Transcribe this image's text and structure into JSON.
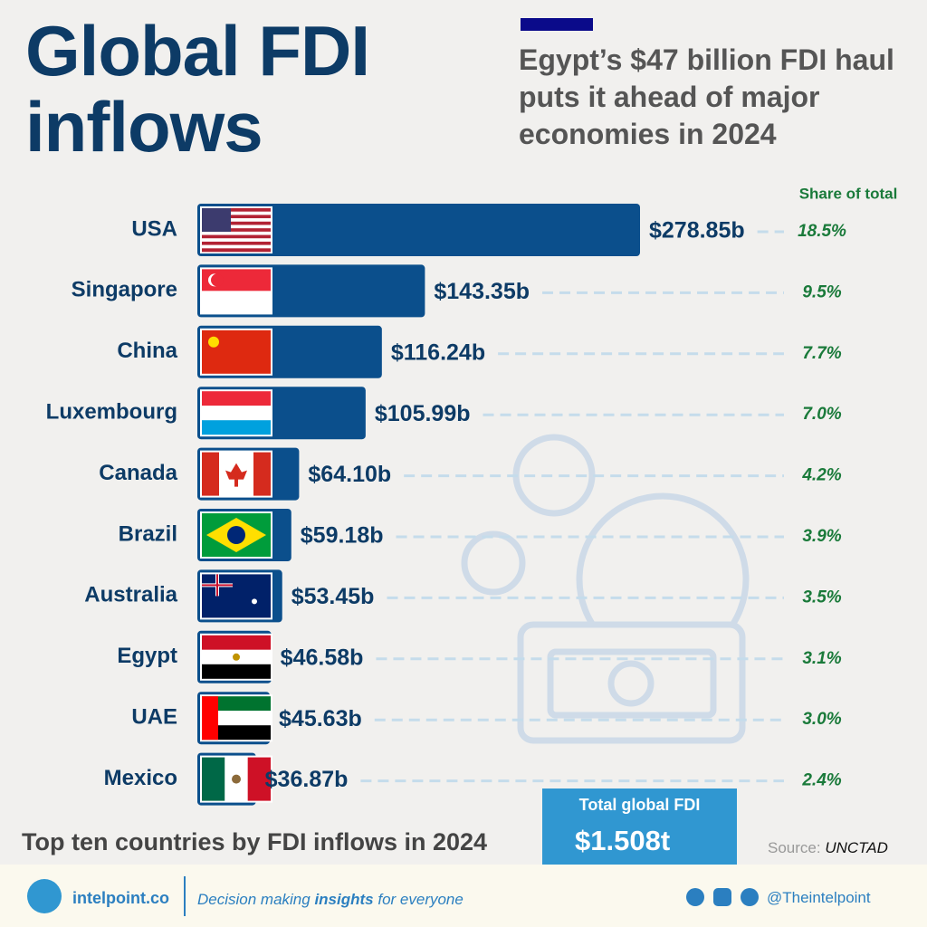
{
  "chart_data": {
    "type": "bar",
    "title": "Global FDI inflows",
    "subtitle": "Egypt’s $47 billion FDI haul puts it ahead of major economies in 2024",
    "caption": "Top ten countries by FDI inflows in 2024",
    "categories": [
      "USA",
      "Singapore",
      "China",
      "Luxembourg",
      "Canada",
      "Brazil",
      "Australia",
      "Egypt",
      "UAE",
      "Mexico"
    ],
    "values": [
      278.85,
      143.35,
      116.24,
      105.99,
      64.1,
      59.18,
      53.45,
      46.58,
      45.63,
      36.87
    ],
    "value_labels": [
      "$278.85b",
      "$143.35b",
      "$116.24b",
      "$105.99b",
      "$64.10b",
      "$59.18b",
      "$53.45b",
      "$46.58b",
      "$45.63b",
      "$36.87b"
    ],
    "color": "#0b4f8c",
    "share": {
      "title": "Share of total",
      "values": [
        18.5,
        9.5,
        7.7,
        7.0,
        4.2,
        3.9,
        3.5,
        3.1,
        3.0,
        2.4
      ],
      "value_labels": [
        "18.5%",
        "9.5%",
        "7.7%",
        "7.0%",
        "4.2%",
        "3.9%",
        "3.5%",
        "3.1%",
        "3.0%",
        "2.4%"
      ],
      "color": "#1a7a3a"
    },
    "total": {
      "label": "Total global FDI",
      "text": "$1.508t"
    },
    "source_label": "Source:",
    "source": "UNCTAD"
  },
  "footer": {
    "brand": "intelpoint.co",
    "tagline": [
      "Decision making ",
      "insights",
      " for everyone"
    ],
    "handle": "@Theintelpoint"
  }
}
